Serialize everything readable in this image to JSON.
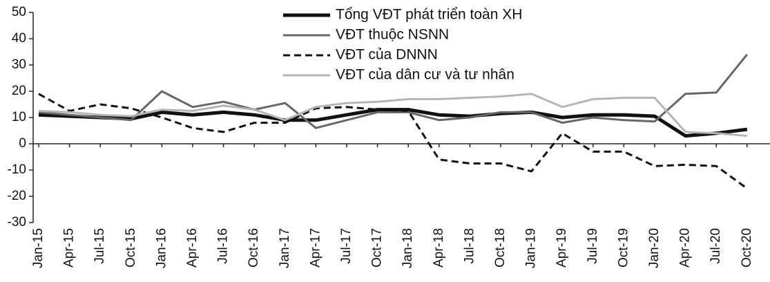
{
  "chart_data": {
    "type": "line",
    "categories": [
      "Jan-15",
      "Apr-15",
      "Jul-15",
      "Oct-15",
      "Jan-16",
      "Apr-16",
      "Jul-16",
      "Oct-16",
      "Jan-17",
      "Apr-17",
      "Jul-17",
      "Oct-17",
      "Jan-18",
      "Apr-18",
      "Jul-18",
      "Oct-18",
      "Jan-19",
      "Apr-19",
      "Jul-19",
      "Oct-19",
      "Jan-20",
      "Apr-20",
      "Jul-20",
      "Oct-20"
    ],
    "series": [
      {
        "name": "Tổng VĐT phát triển toàn XH",
        "color": "#111111",
        "width": 5,
        "dash": false,
        "values": [
          11,
          10.5,
          10,
          9.5,
          12,
          11,
          12,
          11,
          9,
          9,
          11,
          13,
          13,
          11,
          10.5,
          11.5,
          12,
          10,
          11,
          11,
          10.5,
          3,
          4,
          5.5
        ]
      },
      {
        "name": "VĐT thuộc NSNN",
        "color": "#666666",
        "width": 3,
        "dash": false,
        "values": [
          12,
          11,
          10,
          9,
          20,
          14,
          16,
          13,
          15.5,
          6,
          9,
          12,
          12,
          9,
          10,
          12,
          12,
          8,
          10,
          9,
          8.5,
          19,
          19.5,
          34
        ]
      },
      {
        "name": "VĐT của DNNN",
        "color": "#111111",
        "width": 3,
        "dash": true,
        "values": [
          19,
          12.5,
          15,
          13.5,
          10,
          6,
          4.5,
          8,
          8,
          13.5,
          14,
          13,
          12.5,
          -6,
          -7.5,
          -7.5,
          -10.5,
          4,
          -3,
          -3,
          -8.5,
          -8,
          -8.5,
          -17
        ]
      },
      {
        "name": "VĐT của dân cư và tư nhân",
        "color": "#b5b5b5",
        "width": 3,
        "dash": false,
        "values": [
          12.5,
          12,
          11,
          10.5,
          13,
          12.5,
          14.5,
          13,
          9,
          14,
          15.5,
          16,
          17,
          17,
          17.5,
          18,
          19,
          14,
          17,
          17.5,
          17.5,
          4.5,
          4,
          3
        ]
      }
    ],
    "ylim": [
      -30,
      50
    ],
    "yticks": [
      -30,
      -20,
      -10,
      0,
      10,
      20,
      30,
      40,
      50
    ]
  }
}
